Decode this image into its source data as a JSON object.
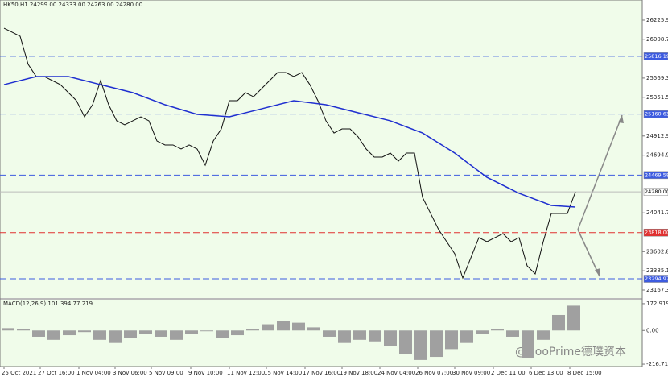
{
  "chart_data": {
    "type": "line",
    "title": "HK50,H1  24299.00 24333.00 24263.00 24280.00",
    "ylim": [
      23076,
      26454
    ],
    "yticks": [
      {
        "value": 26225.95,
        "label": "26225.95"
      },
      {
        "value": 26008.75,
        "label": "26008.75"
      },
      {
        "value": 25569.35,
        "label": "25569.35"
      },
      {
        "value": 25351.55,
        "label": "25351.55"
      },
      {
        "value": 24912.95,
        "label": "24912.95"
      },
      {
        "value": 24694.95,
        "label": "24694.95"
      },
      {
        "value": 24041.7,
        "label": "24041.70"
      },
      {
        "value": 23602.85,
        "label": "23602.85"
      },
      {
        "value": 23385.1,
        "label": "23385.10"
      },
      {
        "value": 23167.35,
        "label": "23167.35"
      }
    ],
    "xticks": [
      {
        "value": 0,
        "label": "25 Oct 2021"
      },
      {
        "value": 4.5,
        "label": "27 Oct 16:00"
      },
      {
        "value": 9.3,
        "label": "1 Nov 04:00"
      },
      {
        "value": 13.8,
        "label": "3 Nov 06:00"
      },
      {
        "value": 18.3,
        "label": "5 Nov 09:00"
      },
      {
        "value": 23.2,
        "label": "9 Nov 10:00"
      },
      {
        "value": 28,
        "label": "11 Nov 12:00"
      },
      {
        "value": 32.6,
        "label": "15 Nov 14:00"
      },
      {
        "value": 37.4,
        "label": "17 Nov 16:00"
      },
      {
        "value": 42,
        "label": "19 Nov 18:00"
      },
      {
        "value": 46.7,
        "label": "24 Nov 04:00"
      },
      {
        "value": 51.4,
        "label": "26 Nov 07:00"
      },
      {
        "value": 56,
        "label": "30 Nov 09:00"
      },
      {
        "value": 60.8,
        "label": "2 Dec 11:00"
      },
      {
        "value": 65.5,
        "label": "6 Dec 13:00"
      },
      {
        "value": 70.3,
        "label": "8 Dec 15:00"
      }
    ],
    "series": [
      {
        "color": "#111111",
        "values": [
          26134,
          26089,
          26043,
          25724,
          25587,
          25587,
          25541,
          25495,
          25404,
          25313,
          25130,
          25267,
          25541,
          25267,
          25085,
          25039,
          25085,
          25130,
          25085,
          24856,
          24811,
          24811,
          24765,
          24811,
          24765,
          24582,
          24856,
          24993,
          25313,
          25313,
          25404,
          25358,
          25450,
          25541,
          25632,
          25632,
          25587,
          25632,
          25495,
          25313,
          25085,
          24947,
          24993,
          24993,
          24902,
          24765,
          24674,
          24674,
          24719,
          24628,
          24719,
          24719,
          24217,
          24035,
          23852,
          23715,
          23578,
          23304,
          23532,
          23761,
          23715,
          23761,
          23806,
          23715,
          23761,
          23441,
          23350,
          23715,
          24035,
          24035,
          24035,
          24280
        ]
      },
      {
        "color": "#1f2fd0",
        "x": [
          0,
          4,
          8,
          12,
          16,
          20,
          24,
          28,
          32,
          36,
          40,
          44,
          48,
          52,
          56,
          60,
          64,
          68,
          71
        ],
        "values": [
          25495,
          25587,
          25587,
          25495,
          25404,
          25267,
          25158,
          25130,
          25221,
          25313,
          25267,
          25176,
          25085,
          24947,
          24719,
          24445,
          24263,
          24126,
          24108
        ]
      }
    ],
    "levels": [
      {
        "value": 25816.19,
        "label": "25816.19",
        "color": "#3d5be0"
      },
      {
        "value": 25160.63,
        "label": "25160.63",
        "color": "#3d5be0"
      },
      {
        "value": 24469.58,
        "label": "24469.58",
        "color": "#3d5be0"
      },
      {
        "value": 24280.0,
        "label": "24280.00",
        "color": "#bbbbbb"
      },
      {
        "value": 23818.0,
        "label": "23818.00",
        "color": "#e03030"
      },
      {
        "value": 23294.97,
        "label": "23294.97",
        "color": "#3d5be0"
      }
    ],
    "macd": {
      "title": "MACD(12,26,9) 101.394 77.219",
      "ylim": [
        -232,
        198.4
      ],
      "yticks": [
        {
          "value": 172.919,
          "label": "172.919"
        },
        {
          "value": 0,
          "label": "0.00"
        },
        {
          "value": -216.71,
          "label": "-216.71"
        }
      ],
      "values": [
        15,
        10,
        -40,
        -60,
        -30,
        -10,
        -60,
        -80,
        -50,
        -20,
        -40,
        -60,
        -20,
        -5,
        -50,
        -30,
        10,
        40,
        60,
        50,
        20,
        -40,
        -80,
        -60,
        -70,
        -100,
        -150,
        -190,
        -170,
        -120,
        -80,
        -20,
        10,
        -40,
        -180,
        -60,
        100,
        160
      ]
    },
    "watermark": "@DooPrime德璞资本"
  }
}
